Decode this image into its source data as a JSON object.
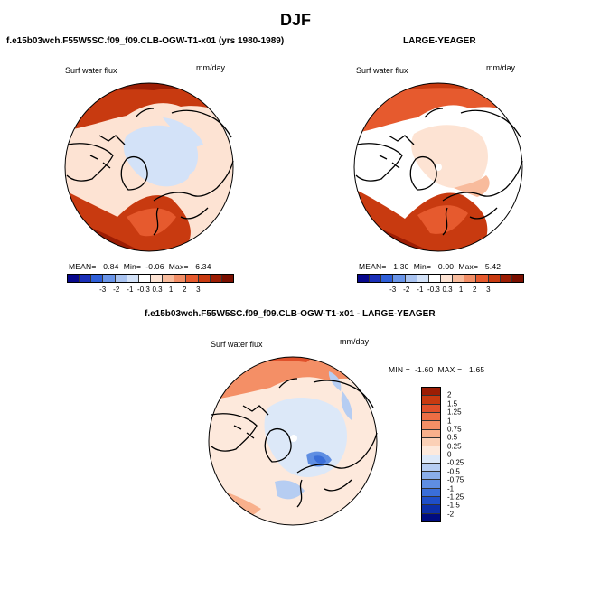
{
  "season": "DJF",
  "panels": {
    "model": {
      "title": "f.e15b03wch.F55W5SC.f09_f09.CLB-OGW-T1-x01 (yrs 1980-1989)",
      "field": "Surf water flux",
      "units": "mm/day",
      "mean_label": "MEAN=",
      "mean": "0.84",
      "min_label": "Min=",
      "min": "-0.06",
      "max_label": "Max=",
      "max": "6.34"
    },
    "obs": {
      "title": "LARGE-YEAGER",
      "field": "Surf water flux",
      "units": "mm/day",
      "mean_label": "MEAN=",
      "mean": "1.30",
      "min_label": "Min=",
      "min": "0.00",
      "max_label": "Max=",
      "max": "5.42"
    },
    "diff": {
      "title": "f.e15b03wch.F55W5SC.f09_f09.CLB-OGW-T1-x01 - LARGE-YEAGER",
      "field": "Surf water flux",
      "units": "mm/day",
      "min_label": "MIN =",
      "min": "-1.60",
      "max_label": "MAX =",
      "max": "1.65"
    }
  },
  "colorbar_abs": {
    "labels": [
      "-3",
      "-2",
      "-1",
      "-0.3",
      "0.3",
      "1",
      "2",
      "3"
    ],
    "colors": [
      "#08088c",
      "#1a2fb8",
      "#2f5fd8",
      "#6a95e8",
      "#a9c3f0",
      "#d3e2f8",
      "#ffffff",
      "#fde3d3",
      "#f8bb9c",
      "#f28e66",
      "#e65a2e",
      "#c83a10",
      "#9c1d04",
      "#7a0f00"
    ]
  },
  "colorbar_diff": {
    "labels": [
      "2",
      "1.5",
      "1.25",
      "1",
      "0.75",
      "0.5",
      "0.25",
      "0",
      "-0.25",
      "-0.5",
      "-0.75",
      "-1",
      "-1.25",
      "-1.5",
      "-2"
    ],
    "colors": [
      "#9c1d04",
      "#c83a10",
      "#e0502a",
      "#ed6e44",
      "#f48f66",
      "#f8b08c",
      "#fbd0b6",
      "#fde9dc",
      "#dce8f8",
      "#b6cdf2",
      "#8aaeea",
      "#5f8ee2",
      "#3a6ed8",
      "#1f4fc8",
      "#0d2fa8",
      "#000c80"
    ]
  }
}
